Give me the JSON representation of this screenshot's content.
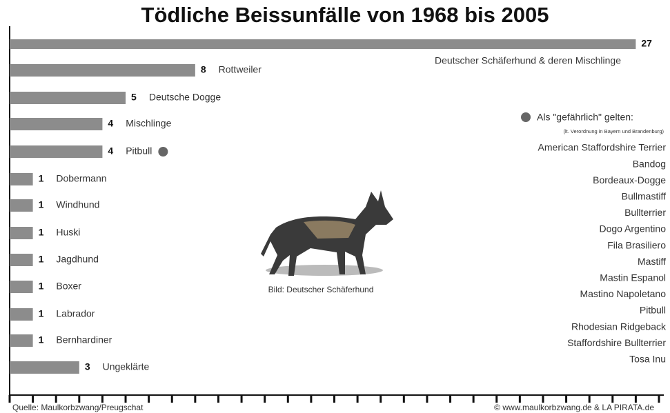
{
  "chart_data": {
    "type": "bar",
    "title": "Tödliche Beissunfälle von 1968 bis 2005",
    "categories": [
      "Deutscher Schäferhund & deren Mischlinge",
      "Rottweiler",
      "Deutsche Dogge",
      "Mischlinge",
      "Pitbull",
      "Dobermann",
      "Windhund",
      "Huski",
      "Jagdhund",
      "Boxer",
      "Labrador",
      "Bernhardiner",
      "Ungeklärte"
    ],
    "values": [
      27,
      8,
      5,
      4,
      4,
      1,
      1,
      1,
      1,
      1,
      1,
      1,
      3
    ],
    "color": "#8c8c8c",
    "xlim": [
      0,
      28
    ],
    "xticks": [
      0,
      1,
      2,
      3,
      4,
      5,
      6,
      7,
      8,
      9,
      10,
      11,
      12,
      13,
      14,
      15,
      16,
      17,
      18,
      19,
      20,
      21,
      22,
      23,
      24,
      25,
      26,
      27,
      28
    ],
    "marked": [
      false,
      false,
      false,
      false,
      true,
      false,
      false,
      false,
      false,
      false,
      false,
      false,
      false
    ],
    "marker_color": "#666666",
    "legend": {
      "heading": "Als \"gefährlich\" gelten:",
      "note": "(lt. Verordnung in Bayern und Brandenburg)",
      "items": [
        "American Staffordshire Terrier",
        "Bandog",
        "Bordeaux-Dogge",
        "Bullmastiff",
        "Bullterrier",
        "Dogo Argentino",
        "Fila Brasiliero",
        "Mastiff",
        "Mastin Espanol",
        "Mastino Napoletano",
        "Pitbull",
        "Rhodesian Ridgeback",
        "Staffordshire Bullterrier",
        "Tosa Inu"
      ]
    },
    "image_caption": "Bild: Deutscher Schäferhund",
    "source": "Quelle: Maulkorbzwang/Preugschat",
    "copyright": "© www.maulkorbzwang.de & LA PIRATA.de"
  }
}
